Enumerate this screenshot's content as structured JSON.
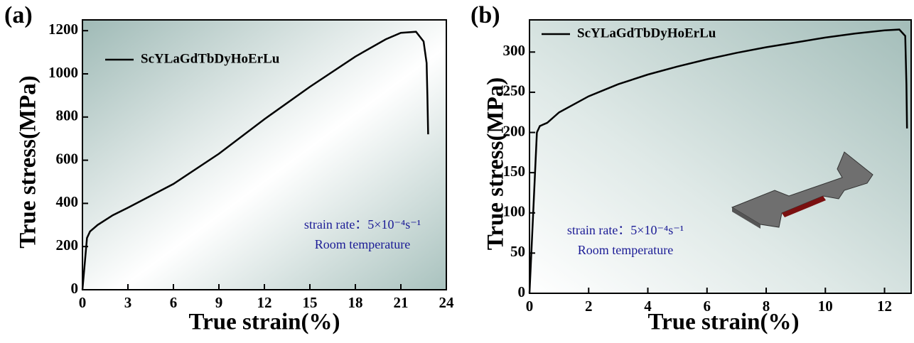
{
  "chart_data": [
    {
      "type": "line",
      "panel_label": "(a)",
      "x_label": "True strain(%)",
      "y_label": "True stress(MPa)",
      "legend": "upper left",
      "x": [
        0,
        0.3,
        0.5,
        1,
        2,
        3,
        6,
        9,
        12,
        15,
        18,
        20,
        21,
        22,
        22.5,
        22.7,
        22.75,
        22.8
      ],
      "series": [
        {
          "name": "ScYLaGdTbDyHoErLu",
          "color": "#000000",
          "values": [
            0,
            240,
            270,
            300,
            345,
            380,
            490,
            630,
            790,
            940,
            1080,
            1160,
            1190,
            1195,
            1150,
            1050,
            900,
            720
          ]
        }
      ],
      "xlim": [
        0,
        24
      ],
      "xticks": [
        0,
        3,
        6,
        9,
        12,
        15,
        18,
        21,
        24
      ],
      "ylim": [
        0,
        1250
      ],
      "yticks": [
        0,
        200,
        400,
        600,
        800,
        1000,
        1200
      ],
      "annotations": [
        "strain rate：5×10⁻⁴s⁻¹",
        "Room temperature"
      ]
    },
    {
      "type": "line",
      "panel_label": "(b)",
      "x_label": "True strain(%)",
      "y_label": "True stress(MPa)",
      "legend": "upper left",
      "x": [
        0,
        0.25,
        0.35,
        0.6,
        1,
        2,
        3,
        4,
        5,
        6,
        7,
        8,
        9,
        10,
        11,
        12,
        12.5,
        12.7,
        12.74,
        12.76
      ],
      "series": [
        {
          "name": "ScYLaGdTbDyHoErLu",
          "color": "#000000",
          "values": [
            0,
            200,
            208,
            212,
            225,
            245,
            260,
            272,
            282,
            291,
            299,
            306,
            312,
            318,
            323,
            327,
            328,
            320,
            260,
            205
          ]
        }
      ],
      "xlim": [
        0,
        12.9
      ],
      "xticks": [
        0,
        2,
        4,
        6,
        8,
        10,
        12
      ],
      "ylim": [
        0,
        340
      ],
      "yticks": [
        0,
        50,
        100,
        150,
        200,
        250,
        300
      ],
      "annotations": [
        "strain rate：5×10⁻⁴s⁻¹",
        "Room temperature"
      ]
    }
  ]
}
